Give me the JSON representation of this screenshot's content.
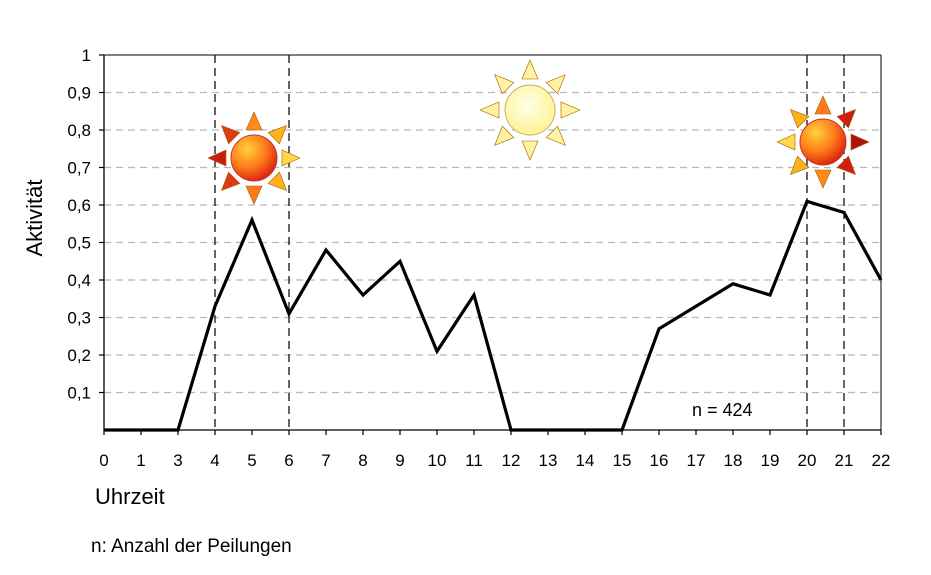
{
  "chart_data": {
    "type": "line",
    "title": "",
    "xlabel": "Uhrzeit",
    "ylabel": "Aktivität",
    "x_ticks": [
      "0",
      "1",
      "3",
      "4",
      "5",
      "6",
      "7",
      "8",
      "9",
      "10",
      "11",
      "12",
      "13",
      "14",
      "15",
      "16",
      "17",
      "18",
      "19",
      "20",
      "21",
      "22"
    ],
    "y_ticks": [
      "0,1",
      "0,2",
      "0,3",
      "0,4",
      "0,5",
      "0,6",
      "0,7",
      "0,8",
      "0,9",
      "1"
    ],
    "ylim": [
      0,
      1
    ],
    "grid": "horizontal dashed",
    "series": [
      {
        "values": [
          0,
          0,
          0,
          0.33,
          0.56,
          0.31,
          0.48,
          0.36,
          0.45,
          0.21,
          0.36,
          0,
          0,
          0,
          0,
          0.27,
          0.33,
          0.39,
          0.36,
          0.61,
          0.58,
          0.4
        ]
      }
    ],
    "vertical_lines_at": [
      "4",
      "6",
      "20",
      "21"
    ],
    "annotation": "n = 424",
    "line_color": "#000000",
    "icons": [
      "sunrise-sun-icon",
      "midday-sun-icon",
      "sunset-sun-icon"
    ]
  },
  "footnote": "n: Anzahl der Peilungen"
}
